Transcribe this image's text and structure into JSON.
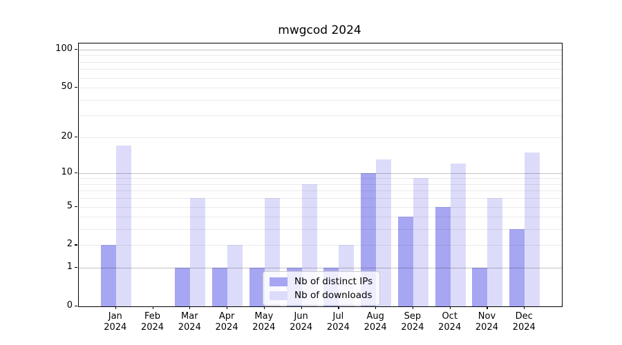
{
  "chart_data": {
    "type": "bar",
    "title": "mwgcod 2024",
    "categories": [
      "Jan",
      "Feb",
      "Mar",
      "Apr",
      "May",
      "Jun",
      "Jul",
      "Aug",
      "Sep",
      "Oct",
      "Nov",
      "Dec"
    ],
    "year_label": "2024",
    "series": [
      {
        "name": "Nb of distinct IPs",
        "color": "#a6a6f2",
        "values": [
          2,
          0,
          1,
          1,
          1,
          1,
          1,
          10,
          4,
          5,
          1,
          3
        ]
      },
      {
        "name": "Nb of downloads",
        "color": "#dcdcfa",
        "values": [
          17,
          0,
          6,
          2,
          6,
          8,
          2,
          13,
          9,
          12,
          6,
          15
        ]
      }
    ],
    "yscale": "log1p",
    "ylim": [
      0,
      112
    ],
    "y_tick_labels": [
      0,
      1,
      2,
      5,
      10,
      20,
      50,
      100
    ],
    "y_major_gridlines": [
      1,
      10,
      100
    ],
    "y_minor_gridlines": [
      2,
      3,
      4,
      5,
      6,
      7,
      8,
      9,
      20,
      30,
      40,
      50,
      60,
      70,
      80,
      90
    ],
    "grid": "on",
    "legend_position": "lower-center",
    "xlabel": "",
    "ylabel": ""
  },
  "legend": {
    "items": [
      {
        "label": "Nb of distinct IPs",
        "color": "#a6a6f2"
      },
      {
        "label": "Nb of downloads",
        "color": "#dcdcfa"
      }
    ]
  },
  "colors": {
    "bar_dark": "#a6a6f2",
    "bar_light": "#dcdcfa",
    "spine": "#000000",
    "grid_major": "rgba(0,0,0,0.24)",
    "grid_minor": "rgba(0,0,0,0.08)",
    "legend_border": "#cccccc"
  }
}
